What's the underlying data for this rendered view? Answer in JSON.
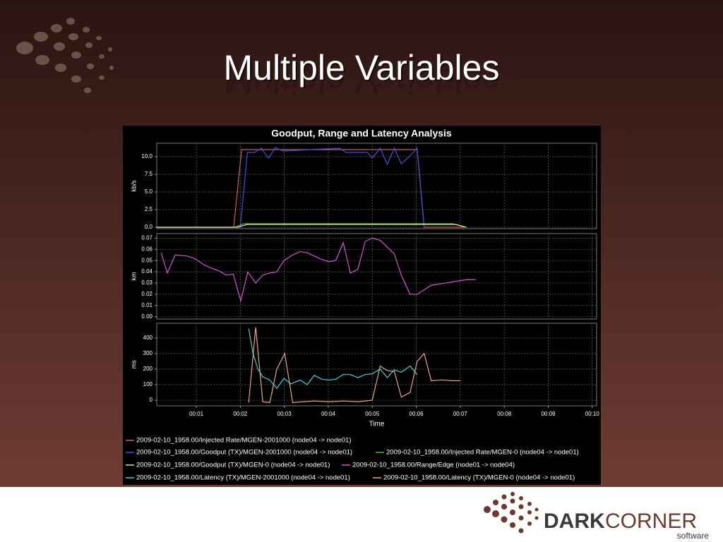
{
  "slide": {
    "title": "Multiple Variables",
    "logo": {
      "dark": "DARK",
      "corner": "CORNER",
      "tagline": "software"
    }
  },
  "chart_data": [
    {
      "type": "line",
      "title": "Goodput, Range and Latency Analysis",
      "ylabel": "kb/s",
      "xlim": [
        0.1,
        10.1
      ],
      "ylim": [
        -0.2,
        11.9
      ],
      "yticks": [
        {
          "value": 0,
          "label": "0.0"
        },
        2.5,
        {
          "value": 5,
          "label": "5.0"
        },
        7.5,
        {
          "value": 10,
          "label": "10.0"
        }
      ],
      "grid": true,
      "series": [
        {
          "name": "2009-02-10_1958.00/Injected Rate/MGEN-2001000 (node04 -> node01)",
          "color": "#d85a5a",
          "x": [
            0.1,
            1.85,
            2.03,
            6.02,
            6.18,
            7.1
          ],
          "values": [
            0,
            0,
            11,
            11,
            0,
            0
          ]
        },
        {
          "name": "2009-02-10_1958.00/Goodput (TX)/MGEN-2001000 (node04 -> node01)",
          "color": "#4a4ae6",
          "x": [
            0.1,
            2.0,
            2.16,
            2.32,
            2.48,
            2.64,
            2.8,
            2.96,
            4.25,
            4.41,
            4.89,
            5.0,
            5.18,
            5.34,
            5.5,
            5.66,
            5.82,
            6.02,
            6.18
          ],
          "values": [
            0,
            0,
            10.6,
            10.6,
            11.2,
            9.8,
            11.3,
            10.8,
            11.2,
            10.6,
            10.6,
            9.8,
            11.2,
            8.9,
            11.2,
            9.0,
            9.9,
            11.2,
            0
          ]
        },
        {
          "name": "2009-02-10_1958.00/Injected Rate/MGEN-0 (node04 -> node01)",
          "color": "#44c044",
          "x": [
            0.1,
            1.87,
            2.08,
            6.82,
            7.14
          ],
          "values": [
            0,
            0,
            0.5,
            0.5,
            0
          ]
        },
        {
          "name": "2009-02-10_1958.00/Goodput (TX)/MGEN-0 (node04 -> node01)",
          "color": "#e6e08a",
          "x": [
            0.1,
            1.93,
            2.16,
            6.9,
            7.14
          ],
          "values": [
            0,
            0,
            0.4,
            0.4,
            0
          ]
        }
      ]
    },
    {
      "type": "line",
      "ylabel": "km",
      "xlim": [
        0.1,
        10.1
      ],
      "ylim": [
        -0.002,
        0.074
      ],
      "yticks": [
        {
          "value": 0,
          "label": "0.00"
        },
        0.01,
        0.02,
        0.03,
        0.04,
        0.05,
        0.06,
        0.07
      ],
      "grid": true,
      "series": [
        {
          "name": "2009-02-10_1958.00/Range/Edge (node01 -> node04)",
          "color": "#d455d4",
          "x": [
            0.2,
            0.34,
            0.52,
            0.79,
            0.95,
            1.19,
            1.35,
            1.51,
            1.68,
            1.84,
            2.01,
            2.17,
            2.35,
            2.51,
            2.67,
            2.83,
            2.99,
            3.19,
            3.36,
            3.52,
            3.68,
            3.85,
            4.01,
            4.17,
            4.34,
            4.5,
            4.67,
            4.84,
            5.0,
            5.18,
            5.34,
            5.5,
            5.66,
            5.86,
            6.02,
            6.18,
            6.34,
            6.66,
            6.98,
            7.14,
            7.35
          ],
          "values": [
            0.057,
            0.039,
            0.055,
            0.054,
            0.052,
            0.046,
            0.043,
            0.041,
            0.037,
            0.038,
            0.014,
            0.04,
            0.03,
            0.037,
            0.039,
            0.04,
            0.05,
            0.055,
            0.058,
            0.057,
            0.054,
            0.051,
            0.049,
            0.05,
            0.066,
            0.039,
            0.042,
            0.067,
            0.07,
            0.068,
            0.062,
            0.056,
            0.037,
            0.02,
            0.02,
            0.024,
            0.028,
            0.03,
            0.032,
            0.033,
            0.033
          ]
        }
      ]
    },
    {
      "type": "line",
      "ylabel": "ms",
      "xlabel": "Time",
      "xlim": [
        0.1,
        10.1
      ],
      "ylim": [
        -36,
        495
      ],
      "yticks": [
        0,
        100,
        200,
        300,
        400
      ],
      "xticks": [
        {
          "value": 1,
          "label": "00:01"
        },
        {
          "value": 2,
          "label": "00:02"
        },
        {
          "value": 3,
          "label": "00:03"
        },
        {
          "value": 4,
          "label": "00:04"
        },
        {
          "value": 5,
          "label": "00:05"
        },
        {
          "value": 6,
          "label": "00:06"
        },
        {
          "value": 7,
          "label": "00:07"
        },
        {
          "value": 8,
          "label": "00:08"
        },
        {
          "value": 9,
          "label": "00:09"
        },
        {
          "value": 10,
          "label": "00:10"
        }
      ],
      "grid": true,
      "series": [
        {
          "name": "2009-02-10_1958.00/Latency (TX)/MGEN-2001000 (node04 -> node01)",
          "color": "#44d2d2",
          "x": [
            2.19,
            2.29,
            2.4,
            2.51,
            2.67,
            2.83,
            2.99,
            3.15,
            3.36,
            3.52,
            3.68,
            3.85,
            4.01,
            4.17,
            4.34,
            4.5,
            4.67,
            4.84,
            5.0,
            5.18,
            5.34,
            5.5,
            5.66,
            5.86,
            6.02
          ],
          "values": [
            460,
            300,
            200,
            150,
            130,
            75,
            140,
            105,
            130,
            100,
            160,
            135,
            130,
            135,
            165,
            165,
            145,
            165,
            170,
            200,
            145,
            195,
            180,
            220,
            165
          ]
        },
        {
          "name": "2009-02-10_1958.00/Latency (TX)/MGEN-0 (node04 -> node01)",
          "color": "#e8a48e",
          "x": [
            2.19,
            2.35,
            2.51,
            2.67,
            2.83,
            3.01,
            3.19,
            3.44,
            3.68,
            4.01,
            4.34,
            4.67,
            5.0,
            5.18,
            5.34,
            5.5,
            5.66,
            5.86,
            6.02,
            6.18,
            6.34,
            6.58,
            6.82,
            7.01
          ],
          "values": [
            -15,
            470,
            -10,
            -15,
            200,
            300,
            -15,
            -10,
            -5,
            -10,
            -5,
            -10,
            0,
            220,
            190,
            185,
            20,
            50,
            250,
            300,
            125,
            130,
            125,
            125
          ]
        }
      ]
    }
  ]
}
